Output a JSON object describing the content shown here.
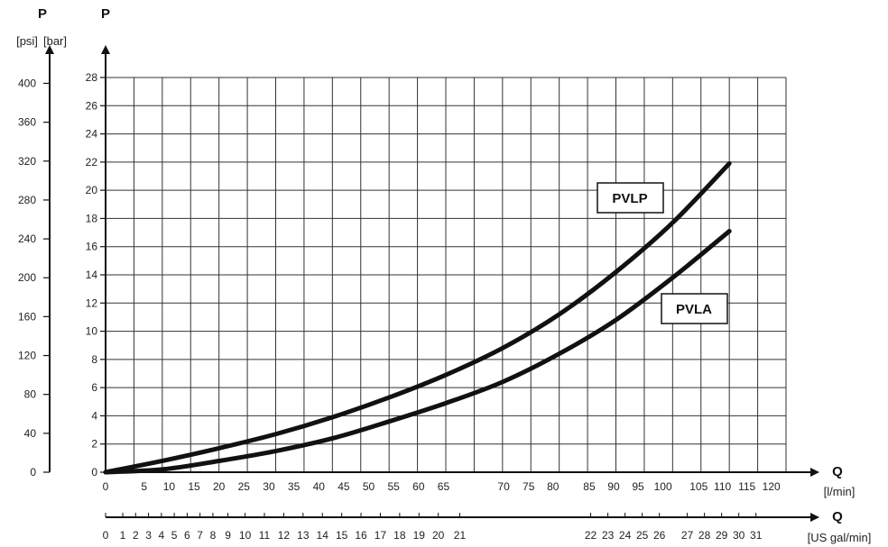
{
  "chart_data": {
    "type": "line",
    "axes": {
      "bar": {
        "title": "P",
        "unit": "[bar]",
        "ticks": [
          "0",
          "2",
          "4",
          "6",
          "8",
          "10",
          "12",
          "14",
          "16",
          "18",
          "20",
          "22",
          "24",
          "26",
          "28"
        ],
        "ylim": [
          0,
          28
        ]
      },
      "psi": {
        "title": "P",
        "unit": "[psi]",
        "ticks": [
          "0",
          "40",
          "80",
          "120",
          "160",
          "200",
          "240",
          "280",
          "320",
          "360",
          "400"
        ],
        "ylim": [
          0,
          406
        ]
      },
      "lpm": {
        "title": "Q",
        "unit": "[l/min]",
        "ticks": [
          "0",
          "5",
          "10",
          "15",
          "20",
          "25",
          "30",
          "35",
          "40",
          "45",
          "50",
          "55",
          "60",
          "65",
          "70",
          "75",
          "80",
          "85",
          "90",
          "95",
          "100",
          "105",
          "110",
          "115",
          "120"
        ],
        "xlim": [
          0,
          120
        ]
      },
      "gpm": {
        "title": "Q",
        "unit": "[US gal/min]",
        "ticks": [
          "0",
          "1",
          "2",
          "3",
          "4",
          "5",
          "6",
          "7",
          "8",
          "9",
          "10",
          "11",
          "12",
          "13",
          "14",
          "15",
          "16",
          "17",
          "18",
          "19",
          "20",
          "21",
          "22",
          "23",
          "24",
          "25",
          "26",
          "27",
          "28",
          "29",
          "30",
          "31"
        ],
        "xlim": [
          0,
          31.7
        ]
      }
    },
    "series": [
      {
        "name": "PVLP",
        "x": [
          0,
          10,
          20,
          30,
          40,
          50,
          60,
          70,
          80,
          90,
          100,
          110
        ],
        "y": [
          0,
          0.8,
          1.7,
          2.7,
          3.9,
          5.3,
          6.9,
          8.8,
          11.2,
          14.2,
          17.7,
          21.9
        ]
      },
      {
        "name": "PVLA",
        "x": [
          0,
          10,
          20,
          30,
          40,
          50,
          60,
          70,
          80,
          90,
          100,
          110
        ],
        "y": [
          0,
          0.2,
          0.8,
          1.5,
          2.4,
          3.6,
          4.9,
          6.4,
          8.4,
          10.8,
          13.8,
          17.1
        ]
      }
    ],
    "grid": true
  }
}
